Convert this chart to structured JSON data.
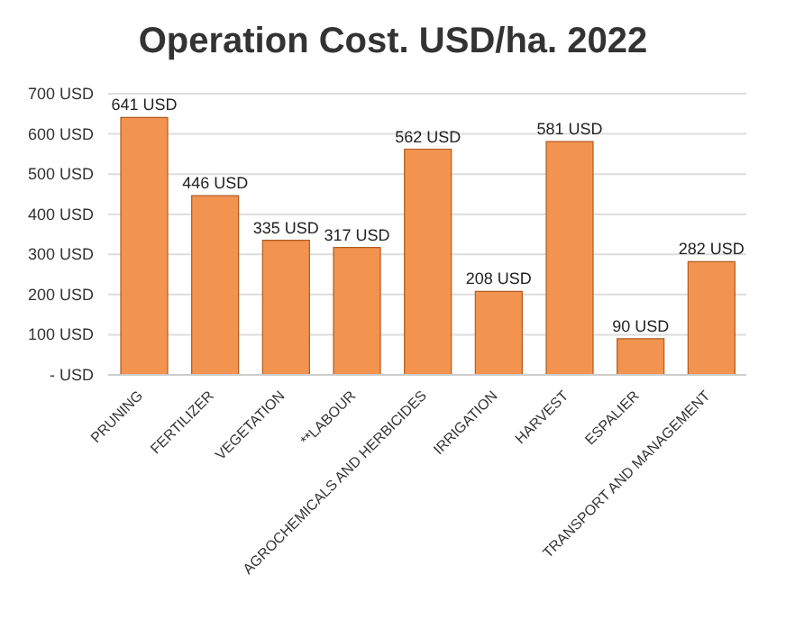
{
  "chart_data": {
    "type": "bar",
    "title": "Operation Cost. USD/ha.  2022",
    "categories": [
      "PRUNING",
      "FERTILIZER",
      "VEGETATION",
      "**LABOUR",
      "AGROCHEMICALS AND HERBICIDES",
      "IRRIGATION",
      "HARVEST",
      "ESPALIER",
      "TRANSPORT AND MANAGEMENT"
    ],
    "values": [
      641,
      446,
      335,
      317,
      562,
      208,
      581,
      90,
      282
    ],
    "value_labels": [
      "641 USD",
      "446 USD",
      "335 USD",
      "317 USD",
      "562 USD",
      "208 USD",
      "581 USD",
      "90 USD",
      "282 USD"
    ],
    "color": "#f2934f",
    "ylim": [
      0,
      700
    ],
    "yticks": [
      {
        "value": 0,
        "label": "- USD"
      },
      {
        "value": 100,
        "label": "100 USD"
      },
      {
        "value": 200,
        "label": "200 USD"
      },
      {
        "value": 300,
        "label": "300 USD"
      },
      {
        "value": 400,
        "label": "400 USD"
      },
      {
        "value": 500,
        "label": "500 USD"
      },
      {
        "value": 600,
        "label": "600 USD"
      },
      {
        "value": 700,
        "label": "700 USD"
      }
    ],
    "grid": "y"
  }
}
